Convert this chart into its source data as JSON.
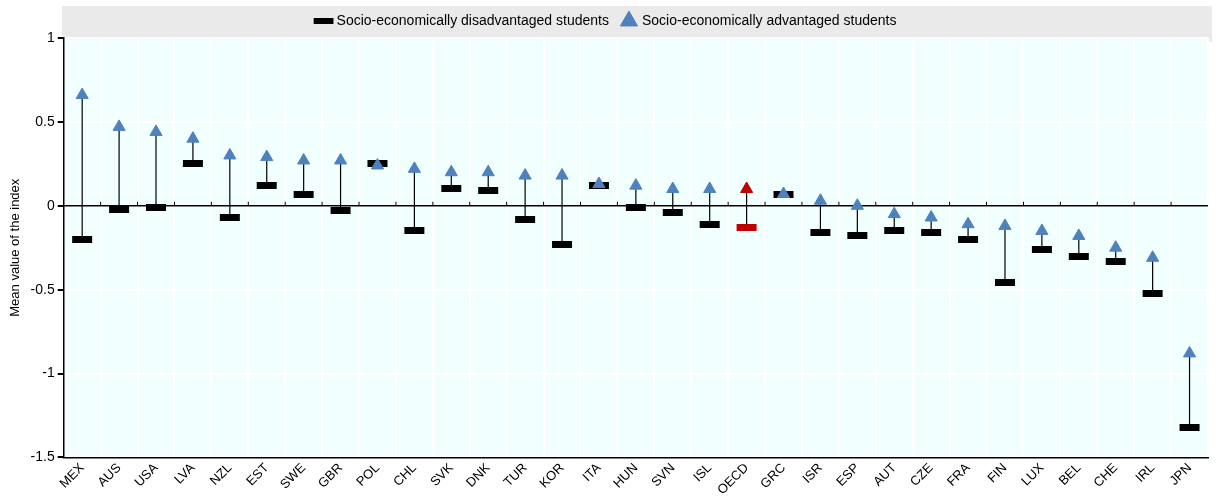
{
  "chart_data": {
    "type": "scatter",
    "ylabel": "Mean value of the index",
    "categories": [
      "MEX",
      "AUS",
      "USA",
      "LVA",
      "NZL",
      "EST",
      "SWE",
      "GBR",
      "POL",
      "CHL",
      "SVK",
      "DNK",
      "TUR",
      "KOR",
      "ITA",
      "HUN",
      "SVN",
      "ISL",
      "OECD",
      "GRC",
      "ISR",
      "ESP",
      "AUT",
      "CZE",
      "FRA",
      "FIN",
      "LUX",
      "BEL",
      "CHE",
      "IRL",
      "JPN"
    ],
    "series": [
      {
        "name": "Socio-economically disadvantaged students",
        "color": "#000000",
        "colors": [
          "#000000",
          "#000000",
          "#000000",
          "#000000",
          "#000000",
          "#000000",
          "#000000",
          "#000000",
          "#000000",
          "#000000",
          "#000000",
          "#000000",
          "#000000",
          "#000000",
          "#000000",
          "#000000",
          "#000000",
          "#000000",
          "#c00000",
          "#000000",
          "#000000",
          "#000000",
          "#000000",
          "#000000",
          "#000000",
          "#000000",
          "#000000",
          "#000000",
          "#000000",
          "#000000",
          "#000000"
        ],
        "values": [
          -0.2,
          -0.02,
          -0.01,
          0.25,
          -0.07,
          0.12,
          0.07,
          -0.03,
          0.25,
          -0.15,
          0.1,
          0.09,
          -0.08,
          -0.23,
          0.12,
          -0.01,
          -0.04,
          -0.11,
          -0.13,
          0.07,
          -0.16,
          -0.18,
          -0.15,
          -0.16,
          -0.2,
          -0.46,
          -0.26,
          -0.3,
          -0.33,
          -0.52,
          -1.32
        ]
      },
      {
        "name": "Socio-economically advantaged students",
        "marker": "triangle",
        "color": "#4f81bd",
        "colors": [
          "#4f81bd",
          "#4f81bd",
          "#4f81bd",
          "#4f81bd",
          "#4f81bd",
          "#4f81bd",
          "#4f81bd",
          "#4f81bd",
          "#4f81bd",
          "#4f81bd",
          "#4f81bd",
          "#4f81bd",
          "#4f81bd",
          "#4f81bd",
          "#4f81bd",
          "#4f81bd",
          "#4f81bd",
          "#4f81bd",
          "#c00000",
          "#4f81bd",
          "#4f81bd",
          "#4f81bd",
          "#4f81bd",
          "#4f81bd",
          "#4f81bd",
          "#4f81bd",
          "#4f81bd",
          "#4f81bd",
          "#4f81bd",
          "#4f81bd",
          "#4f81bd"
        ],
        "values": [
          0.66,
          0.47,
          0.44,
          0.4,
          0.3,
          0.29,
          0.27,
          0.27,
          0.24,
          0.22,
          0.2,
          0.2,
          0.18,
          0.18,
          0.13,
          0.12,
          0.1,
          0.1,
          0.1,
          0.07,
          0.03,
          0.0,
          -0.05,
          -0.07,
          -0.11,
          -0.12,
          -0.15,
          -0.18,
          -0.25,
          -0.31,
          -0.88
        ]
      }
    ],
    "ylim": [
      -1.5,
      1
    ],
    "yticks": [
      -1.5,
      -1,
      -0.5,
      0,
      0.5,
      1
    ],
    "grid": true,
    "legend": "top"
  }
}
